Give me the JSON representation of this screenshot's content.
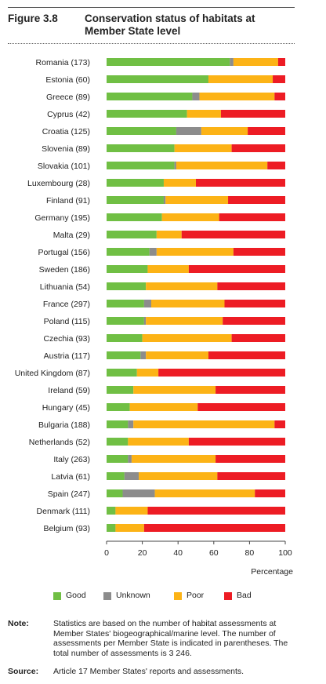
{
  "figure": {
    "label": "Figure 3.8",
    "title": "Conservation status of habitats at Member State level"
  },
  "colors": {
    "good": "#70bf44",
    "unknown": "#8c8c8c",
    "poor": "#fcb316",
    "bad": "#ed1c24"
  },
  "legend": [
    {
      "key": "good",
      "label": "Good"
    },
    {
      "key": "unknown",
      "label": "Unknown"
    },
    {
      "key": "poor",
      "label": "Poor"
    },
    {
      "key": "bad",
      "label": "Bad"
    }
  ],
  "chart_data": {
    "type": "bar",
    "orientation": "horizontal",
    "stacked": true,
    "xlabel": "Percentage",
    "xlim": [
      0,
      100
    ],
    "xticks": [
      0,
      20,
      40,
      60,
      80,
      100
    ],
    "categories": [
      "Romania (173)",
      "Estonia (60)",
      "Greece (89)",
      "Cyprus (42)",
      "Croatia (125)",
      "Slovenia (89)",
      "Slovakia (101)",
      "Luxembourg (28)",
      "Finland (91)",
      "Germany (195)",
      "Malta (29)",
      "Portugal (156)",
      "Sweden (186)",
      "Lithuania (54)",
      "France (297)",
      "Poland  (115)",
      "Czechia (93)",
      "Austria (117)",
      "United Kingdom (87)",
      "Ireland (59)",
      "Hungary (45)",
      "Bulgaria (188)",
      "Netherlands (52)",
      "Italy (263)",
      "Latvia (61)",
      "Spain (247)",
      "Denmark (111)",
      "Belgium (93)"
    ],
    "series": [
      {
        "name": "Good",
        "values": [
          69,
          57,
          48,
          45,
          39,
          38,
          38,
          32,
          32,
          31,
          28,
          24,
          23,
          22,
          21,
          21,
          20,
          19,
          17,
          15,
          13,
          12,
          12,
          12,
          10,
          9,
          5,
          5
        ]
      },
      {
        "name": "Unknown",
        "values": [
          2,
          0,
          4,
          0,
          14,
          0,
          1,
          0,
          1,
          0,
          0,
          4,
          0,
          0,
          4,
          1,
          0,
          3,
          0,
          0,
          0,
          3,
          0,
          2,
          8,
          18,
          0,
          0
        ]
      },
      {
        "name": "Poor",
        "values": [
          25,
          36,
          42,
          19,
          26,
          32,
          51,
          18,
          35,
          32,
          14,
          43,
          23,
          40,
          41,
          43,
          50,
          35,
          12,
          46,
          38,
          79,
          34,
          47,
          44,
          56,
          18,
          16
        ]
      },
      {
        "name": "Bad",
        "values": [
          4,
          7,
          6,
          36,
          21,
          30,
          10,
          50,
          32,
          37,
          58,
          29,
          54,
          38,
          34,
          35,
          30,
          43,
          71,
          39,
          49,
          6,
          54,
          39,
          38,
          17,
          77,
          79
        ]
      }
    ]
  },
  "notes": {
    "note_label": "Note:",
    "note_text": "Statistics are based on the number of habitat assessments at Member States' biogeographical/marine level. The number of assessments per Member State is indicated in parentheses. The total number of assessments is 3 246.",
    "source_label": "Source:",
    "source_text": "Article 17 Member States' reports and assessments."
  }
}
